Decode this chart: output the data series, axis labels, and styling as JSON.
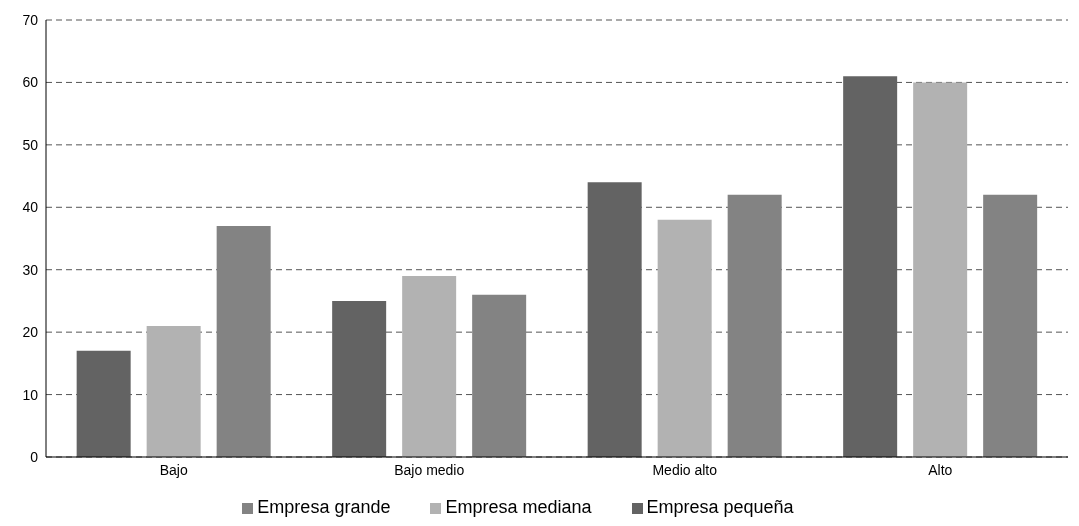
{
  "chart_data": {
    "type": "bar",
    "categories": [
      "Bajo",
      "Bajo medio",
      "Medio alto",
      "Alto"
    ],
    "series": [
      {
        "name": "Empresa pequeña",
        "color": "#636363",
        "values": [
          17,
          25,
          44,
          61
        ]
      },
      {
        "name": "Empresa mediana",
        "color": "#b2b2b2",
        "values": [
          21,
          29,
          38,
          60
        ]
      },
      {
        "name": "Empresa grande",
        "color": "#838383",
        "values": [
          37,
          26,
          42,
          42
        ]
      }
    ],
    "ylim": [
      0,
      70
    ],
    "yticks": [
      0,
      10,
      20,
      30,
      40,
      50,
      60,
      70
    ],
    "grid": "y",
    "legend": "bottom"
  }
}
